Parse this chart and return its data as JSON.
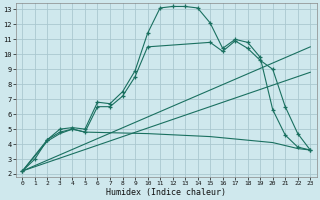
{
  "xlabel": "Humidex (Indice chaleur)",
  "bg_color": "#cfe8ed",
  "grid_color": "#aac8d0",
  "line_color": "#1a7060",
  "xlim": [
    -0.5,
    23.5
  ],
  "ylim": [
    1.8,
    13.4
  ],
  "xticks": [
    0,
    1,
    2,
    3,
    4,
    5,
    6,
    7,
    8,
    9,
    10,
    11,
    12,
    13,
    14,
    15,
    16,
    17,
    18,
    19,
    20,
    21,
    22,
    23
  ],
  "yticks": [
    2,
    3,
    4,
    5,
    6,
    7,
    8,
    9,
    10,
    11,
    12,
    13
  ],
  "series": [
    {
      "x": [
        0,
        1,
        2,
        3,
        4,
        5,
        6,
        7,
        8,
        9,
        10,
        11,
        12,
        13,
        14,
        15,
        16,
        17,
        18,
        19,
        20,
        21,
        22,
        23
      ],
      "y": [
        2.2,
        3.0,
        4.3,
        5.0,
        5.1,
        5.0,
        6.8,
        6.7,
        7.5,
        8.9,
        11.4,
        13.1,
        13.2,
        13.2,
        13.1,
        12.1,
        10.4,
        11.0,
        10.8,
        9.8,
        6.3,
        4.6,
        3.8,
        3.6
      ],
      "marker": true
    },
    {
      "x": [
        0,
        2,
        3,
        4,
        5,
        6,
        7,
        8,
        9,
        10,
        15,
        16,
        17,
        18,
        19,
        20,
        21,
        22,
        23
      ],
      "y": [
        2.2,
        4.3,
        4.8,
        5.0,
        4.8,
        6.5,
        6.5,
        7.2,
        8.5,
        10.5,
        10.8,
        10.2,
        10.9,
        10.4,
        9.6,
        9.0,
        6.5,
        4.7,
        3.6
      ],
      "marker": true
    },
    {
      "x": [
        0,
        23
      ],
      "y": [
        2.2,
        10.5
      ],
      "marker": false
    },
    {
      "x": [
        0,
        23
      ],
      "y": [
        2.2,
        8.8
      ],
      "marker": false
    },
    {
      "x": [
        0,
        2,
        3,
        4,
        5,
        10,
        15,
        20,
        21,
        22,
        23
      ],
      "y": [
        2.2,
        4.2,
        4.7,
        5.0,
        4.8,
        4.7,
        4.5,
        4.1,
        3.9,
        3.7,
        3.6
      ],
      "marker": false
    }
  ]
}
